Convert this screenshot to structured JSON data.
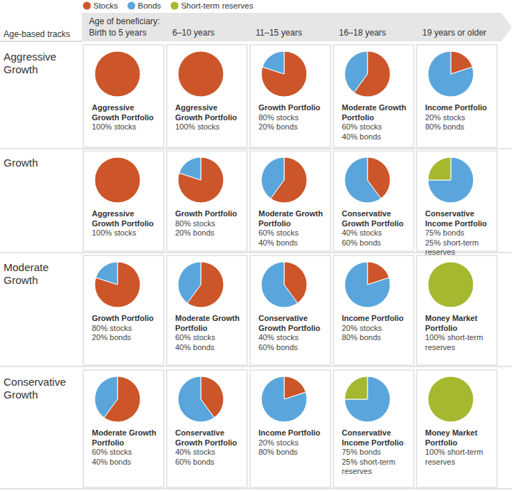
{
  "legend": [
    {
      "name": "Stocks",
      "color": "#cc5529"
    },
    {
      "name": "Bonds",
      "color": "#5aa6dc"
    },
    {
      "name": "Short-term reserves",
      "color": "#a5b830"
    }
  ],
  "row_header": "Age-based tracks",
  "column_header": "Age of beneficiary:",
  "columns": [
    "Birth to 5 years",
    "6–10 years",
    "11–15 years",
    "16–18 years",
    "19 years or older"
  ],
  "tracks": [
    "Aggressive Growth",
    "Growth",
    "Moderate Growth",
    "Conservative Growth"
  ],
  "chart_data": [
    {
      "type": "pie",
      "title": "Aggressive Growth Portfolio",
      "values": [
        100
      ],
      "value_labels": [
        "100% stocks"
      ],
      "colors": [
        "#cc5529"
      ]
    },
    {
      "type": "pie",
      "title": "Aggressive Growth Portfolio",
      "values": [
        100
      ],
      "value_labels": [
        "100% stocks"
      ],
      "colors": [
        "#cc5529"
      ]
    },
    {
      "type": "pie",
      "title": "Growth Portfolio",
      "values": [
        80,
        20
      ],
      "value_labels": [
        "80% stocks",
        "20% bonds"
      ],
      "colors": [
        "#cc5529",
        "#5aa6dc"
      ]
    },
    {
      "type": "pie",
      "title": "Moderate Growth Portfolio",
      "values": [
        60,
        40
      ],
      "value_labels": [
        "60% stocks",
        "40% bonds"
      ],
      "colors": [
        "#cc5529",
        "#5aa6dc"
      ]
    },
    {
      "type": "pie",
      "title": "Income Portfolio",
      "values": [
        20,
        80
      ],
      "value_labels": [
        "20% stocks",
        "80% bonds"
      ],
      "colors": [
        "#cc5529",
        "#5aa6dc"
      ]
    },
    {
      "type": "pie",
      "title": "Aggressive Growth Portfolio",
      "values": [
        100
      ],
      "value_labels": [
        "100% stocks"
      ],
      "colors": [
        "#cc5529"
      ]
    },
    {
      "type": "pie",
      "title": "Growth Portfolio",
      "values": [
        80,
        20
      ],
      "value_labels": [
        "80% stocks",
        "20% bonds"
      ],
      "colors": [
        "#cc5529",
        "#5aa6dc"
      ]
    },
    {
      "type": "pie",
      "title": "Moderate Growth Portfolio",
      "values": [
        60,
        40
      ],
      "value_labels": [
        "60% stocks",
        "40% bonds"
      ],
      "colors": [
        "#cc5529",
        "#5aa6dc"
      ]
    },
    {
      "type": "pie",
      "title": "Conservative Growth Portfolio",
      "values": [
        40,
        60
      ],
      "value_labels": [
        "40% stocks",
        "60% bonds"
      ],
      "colors": [
        "#cc5529",
        "#5aa6dc"
      ]
    },
    {
      "type": "pie",
      "title": "Conservative Income Portfolio",
      "values": [
        75,
        25
      ],
      "value_labels": [
        "75% bonds",
        "25% short-term reserves"
      ],
      "colors": [
        "#5aa6dc",
        "#a5b830"
      ]
    },
    {
      "type": "pie",
      "title": "Growth Portfolio",
      "values": [
        80,
        20
      ],
      "value_labels": [
        "80% stocks",
        "20% bonds"
      ],
      "colors": [
        "#cc5529",
        "#5aa6dc"
      ]
    },
    {
      "type": "pie",
      "title": "Moderate Growth Portfolio",
      "values": [
        60,
        40
      ],
      "value_labels": [
        "60% stocks",
        "40% bonds"
      ],
      "colors": [
        "#cc5529",
        "#5aa6dc"
      ]
    },
    {
      "type": "pie",
      "title": "Conservative Growth Portfolio",
      "values": [
        40,
        60
      ],
      "value_labels": [
        "40% stocks",
        "60% bonds"
      ],
      "colors": [
        "#cc5529",
        "#5aa6dc"
      ]
    },
    {
      "type": "pie",
      "title": "Income Portfolio",
      "values": [
        20,
        80
      ],
      "value_labels": [
        "20% stocks",
        "80% bonds"
      ],
      "colors": [
        "#cc5529",
        "#5aa6dc"
      ]
    },
    {
      "type": "pie",
      "title": "Money Market Portfolio",
      "values": [
        100
      ],
      "value_labels": [
        "100% short-term reserves"
      ],
      "colors": [
        "#a5b830"
      ]
    },
    {
      "type": "pie",
      "title": "Moderate Growth Portfolio",
      "values": [
        60,
        40
      ],
      "value_labels": [
        "60% stocks",
        "40% bonds"
      ],
      "colors": [
        "#cc5529",
        "#5aa6dc"
      ]
    },
    {
      "type": "pie",
      "title": "Conservative Growth Portfolio",
      "values": [
        40,
        60
      ],
      "value_labels": [
        "40% stocks",
        "60% bonds"
      ],
      "colors": [
        "#cc5529",
        "#5aa6dc"
      ]
    },
    {
      "type": "pie",
      "title": "Income Portfolio",
      "values": [
        20,
        80
      ],
      "value_labels": [
        "20% stocks",
        "80% bonds"
      ],
      "colors": [
        "#cc5529",
        "#5aa6dc"
      ]
    },
    {
      "type": "pie",
      "title": "Conservative Income Portfolio",
      "values": [
        75,
        25
      ],
      "value_labels": [
        "75% bonds",
        "25% short-term reserves"
      ],
      "colors": [
        "#5aa6dc",
        "#a5b830"
      ]
    },
    {
      "type": "pie",
      "title": "Money Market Portfolio",
      "values": [
        100
      ],
      "value_labels": [
        "100% short-term reserves"
      ],
      "colors": [
        "#a5b830"
      ]
    }
  ]
}
